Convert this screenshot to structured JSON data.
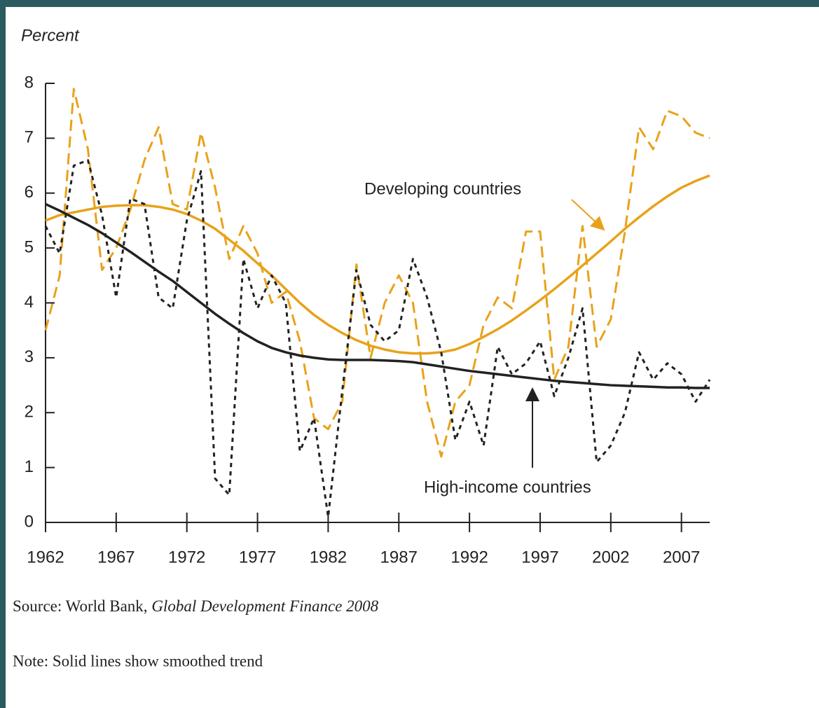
{
  "chart_data": {
    "type": "line",
    "y_label": "Percent",
    "x": [
      1962,
      1963,
      1964,
      1965,
      1966,
      1967,
      1968,
      1969,
      1970,
      1971,
      1972,
      1973,
      1974,
      1975,
      1976,
      1977,
      1978,
      1979,
      1980,
      1981,
      1982,
      1983,
      1984,
      1985,
      1986,
      1987,
      1988,
      1989,
      1990,
      1991,
      1992,
      1993,
      1994,
      1995,
      1996,
      1997,
      1998,
      1999,
      2000,
      2001,
      2002,
      2003,
      2004,
      2005,
      2006,
      2007,
      2008,
      2009
    ],
    "series": [
      {
        "name": "Developing countries",
        "color": "#e8a21a",
        "dashed": true,
        "values": [
          3.5,
          4.5,
          7.9,
          6.8,
          4.6,
          5.0,
          5.7,
          6.6,
          7.2,
          5.8,
          5.7,
          7.1,
          6.1,
          4.8,
          5.4,
          4.9,
          4.0,
          4.2,
          3.3,
          1.9,
          1.7,
          2.2,
          4.7,
          3.0,
          4.0,
          4.5,
          4.0,
          2.2,
          1.2,
          2.2,
          2.5,
          3.6,
          4.1,
          3.9,
          5.3,
          5.3,
          2.6,
          3.2,
          5.4,
          3.2,
          3.7,
          5.3,
          7.2,
          6.8,
          7.5,
          7.4,
          7.1,
          7.0
        ]
      },
      {
        "color": "#e8a21a",
        "dashed": false,
        "values": [
          5.5,
          5.6,
          5.65,
          5.7,
          5.75,
          5.77,
          5.78,
          5.78,
          5.75,
          5.7,
          5.62,
          5.5,
          5.35,
          5.15,
          4.95,
          4.72,
          4.5,
          4.25,
          4.0,
          3.78,
          3.6,
          3.45,
          3.32,
          3.22,
          3.15,
          3.1,
          3.08,
          3.08,
          3.1,
          3.15,
          3.25,
          3.38,
          3.52,
          3.68,
          3.86,
          4.05,
          4.25,
          4.46,
          4.68,
          4.9,
          5.12,
          5.35,
          5.56,
          5.76,
          5.94,
          6.1,
          6.22,
          6.32
        ]
      },
      {
        "name": "High-income countries",
        "color": "#222222",
        "dashed": true,
        "values": [
          5.4,
          4.9,
          6.5,
          6.6,
          5.6,
          4.1,
          5.9,
          5.8,
          4.1,
          3.9,
          5.5,
          6.4,
          0.8,
          0.5,
          4.8,
          3.9,
          4.5,
          4.0,
          1.3,
          1.9,
          0.1,
          2.4,
          4.6,
          3.6,
          3.3,
          3.5,
          4.8,
          4.1,
          3.1,
          1.5,
          2.2,
          1.4,
          3.2,
          2.7,
          2.9,
          3.3,
          2.3,
          3.0,
          3.9,
          1.1,
          1.4,
          2.0,
          3.1,
          2.6,
          2.9,
          2.7,
          2.2,
          2.6
        ]
      },
      {
        "color": "#222222",
        "dashed": false,
        "values": [
          5.8,
          5.68,
          5.55,
          5.42,
          5.27,
          5.1,
          4.93,
          4.75,
          4.57,
          4.4,
          4.2,
          4.0,
          3.8,
          3.62,
          3.45,
          3.3,
          3.18,
          3.1,
          3.04,
          3.0,
          2.97,
          2.96,
          2.96,
          2.96,
          2.95,
          2.94,
          2.92,
          2.88,
          2.84,
          2.8,
          2.76,
          2.73,
          2.7,
          2.67,
          2.64,
          2.61,
          2.58,
          2.56,
          2.54,
          2.52,
          2.5,
          2.49,
          2.48,
          2.47,
          2.46,
          2.46,
          2.45,
          2.45
        ]
      }
    ],
    "xlim": [
      1962,
      2009
    ],
    "xticks": [
      1962,
      1967,
      1972,
      1977,
      1982,
      1987,
      1992,
      1997,
      2002,
      2007
    ],
    "ylim": [
      0,
      8
    ],
    "yticks": [
      0,
      1,
      2,
      3,
      4,
      5,
      6,
      7,
      8
    ],
    "source": "Source:  World Bank,",
    "source_title": "Global Development Finance 2008",
    "note": "Note:  Solid lines show smoothed trend"
  }
}
